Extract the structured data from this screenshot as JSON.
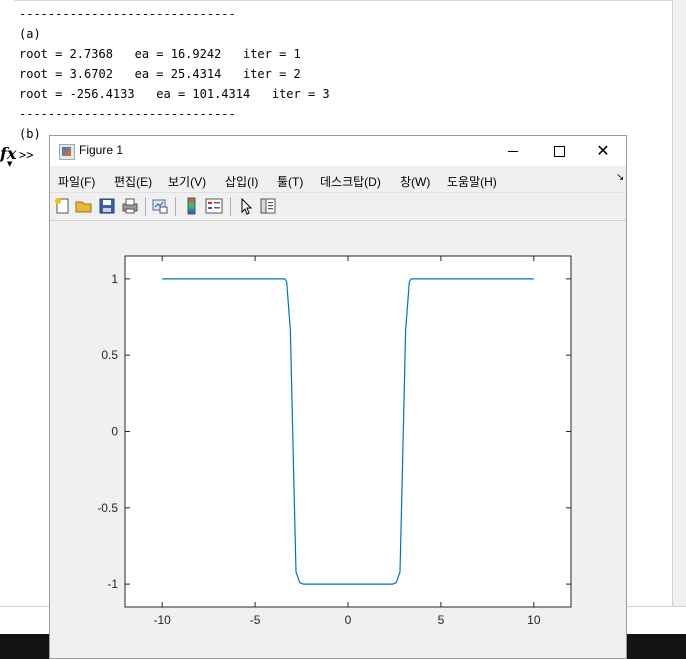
{
  "command_window": {
    "lines": [
      "------------------------------",
      "(a)",
      "root = 2.7368   ea = 16.9242   iter = 1",
      "root = 3.6702   ea = 25.4314   iter = 2",
      "root = -256.4133   ea = 101.4314   iter = 3",
      "------------------------------",
      "(b)"
    ],
    "prompt": ">>",
    "fx_icon": "fx"
  },
  "figure": {
    "title": "Figure 1",
    "controls": {
      "minimize": "minimize-icon",
      "maximize": "maximize-icon",
      "close": "✕"
    },
    "menu": [
      "파일(F)",
      "편집(E)",
      "보기(V)",
      "삽입(I)",
      "툴(T)",
      "데스크탑(D)",
      "창(W)",
      "도움말(H)"
    ],
    "menu_more": "↘",
    "toolbar": [
      "new-figure-icon",
      "open-file-icon",
      "save-icon",
      "print-icon",
      "link-plot-icon",
      "colorbar-icon",
      "legend-icon",
      "edit-plot-arrow-icon",
      "property-inspector-icon"
    ]
  },
  "chart_data": {
    "type": "line",
    "title": "",
    "xlabel": "",
    "ylabel": "",
    "xlim": [
      -12,
      12
    ],
    "ylim": [
      -1.15,
      1.15
    ],
    "xticks": [
      -10,
      -5,
      0,
      5,
      10
    ],
    "xtick_labels": [
      "-10",
      "-5",
      "0",
      "5",
      "10"
    ],
    "yticks": [
      1,
      0.5,
      0,
      -0.5,
      -1
    ],
    "ytick_labels": [
      "1",
      "0.5",
      "0",
      "-0.5",
      "-1"
    ],
    "grid": false,
    "series": [
      {
        "color": "#0072BD",
        "x": [
          -10,
          -3.4,
          -3.3,
          -3.1,
          -2.9,
          -2.8,
          -2.6,
          -2.4,
          2.4,
          2.6,
          2.8,
          2.9,
          3.1,
          3.3,
          3.4,
          10
        ],
        "y": [
          1,
          1,
          0.98,
          0.66,
          -0.4,
          -0.92,
          -0.99,
          -1,
          -1,
          -0.99,
          -0.92,
          -0.4,
          0.66,
          0.98,
          1,
          1
        ]
      }
    ]
  }
}
